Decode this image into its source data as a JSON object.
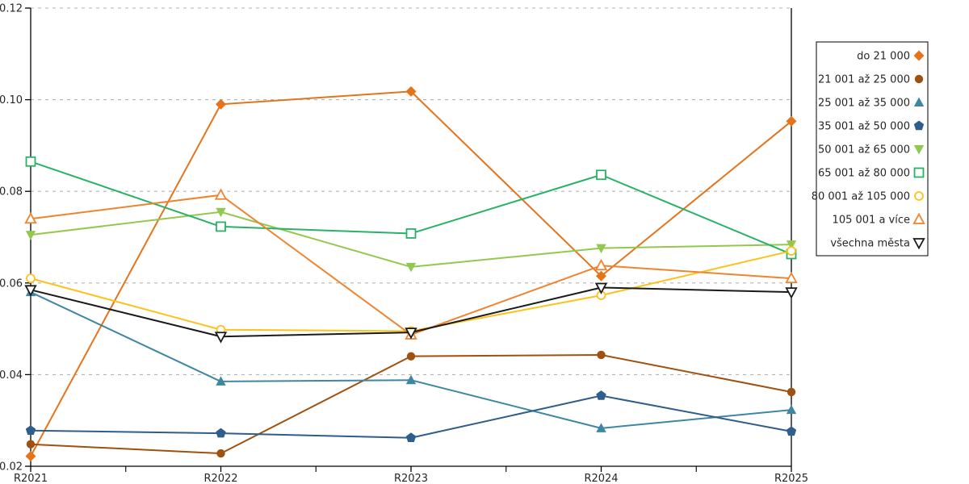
{
  "figure": {
    "background": "#ffffff",
    "axis_color": "#000000",
    "grid_color": "#b3b3b3",
    "tick_label_color": "#262626",
    "legend_border_color": "#000000",
    "legend_background": "#ffffff"
  },
  "chart_data": {
    "type": "line",
    "title": "",
    "xlabel": "",
    "ylabel": "",
    "x_categories": [
      "R2021",
      "R2022",
      "R2023",
      "R2024",
      "R2025"
    ],
    "ylim": [
      0.02,
      0.12
    ],
    "ytick_labels": [
      "0.02",
      "0.04",
      "0.06",
      "0.08",
      "0.10",
      "0.12"
    ],
    "ytick_values": [
      0.02,
      0.04,
      0.06,
      0.08,
      0.1,
      0.12
    ],
    "grid": "horizontal-dashed",
    "legend_position": "outside-top-right",
    "series": [
      {
        "name": "do 21 000",
        "marker": "diamond-filled",
        "color": "#e5731a",
        "values": [
          0.0222,
          0.099,
          0.1018,
          0.0615,
          0.0953
        ]
      },
      {
        "name": "21 001 až 25 000",
        "marker": "circle-filled",
        "color": "#9f5110",
        "values": [
          0.0248,
          0.0228,
          0.044,
          0.0443,
          0.0362
        ]
      },
      {
        "name": "25 001 až 35 000",
        "marker": "triangle-up-filled",
        "color": "#3d87a3",
        "values": [
          0.058,
          0.0385,
          0.0388,
          0.0283,
          0.0323
        ]
      },
      {
        "name": "35 001 až 50 000",
        "marker": "pentagon-filled",
        "color": "#2f5d8c",
        "values": [
          0.0278,
          0.0272,
          0.0262,
          0.0354,
          0.0276
        ]
      },
      {
        "name": "50 001 až 65 000",
        "marker": "triangle-down-filled",
        "color": "#93c84e",
        "values": [
          0.0705,
          0.0755,
          0.0635,
          0.0676,
          0.0684
        ]
      },
      {
        "name": "65 001 až 80 000",
        "marker": "square-open",
        "color": "#27b266",
        "values": [
          0.0865,
          0.0723,
          0.0708,
          0.0836,
          0.0663
        ]
      },
      {
        "name": "80 001 až 105 000",
        "marker": "circle-open",
        "color": "#fcc21b",
        "values": [
          0.061,
          0.0498,
          0.0495,
          0.0573,
          0.067
        ]
      },
      {
        "name": "105 001 a více",
        "marker": "triangle-up-open",
        "color": "#f0832e",
        "values": [
          0.074,
          0.0792,
          0.0487,
          0.0638,
          0.061
        ]
      },
      {
        "name": "všechna města",
        "marker": "triangle-down-open",
        "color": "#1a1a1a",
        "values": [
          0.0585,
          0.0483,
          0.0492,
          0.059,
          0.058
        ]
      }
    ]
  }
}
